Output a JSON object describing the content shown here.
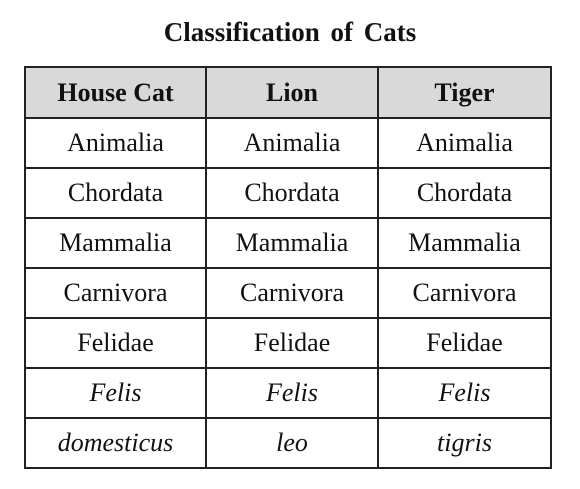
{
  "title": "Classification of Cats",
  "table": {
    "headers": [
      "House Cat",
      "Lion",
      "Tiger"
    ],
    "rows": [
      [
        "Animalia",
        "Animalia",
        "Animalia"
      ],
      [
        "Chordata",
        "Chordata",
        "Chordata"
      ],
      [
        "Mammalia",
        "Mammalia",
        "Mammalia"
      ],
      [
        "Carnivora",
        "Carnivora",
        "Carnivora"
      ],
      [
        "Felidae",
        "Felidae",
        "Felidae"
      ],
      [
        "Felis",
        "Felis",
        "Felis"
      ],
      [
        "domesticus",
        "leo",
        "tigris"
      ]
    ],
    "italic_rows": [
      5,
      6
    ],
    "header_background": "#d9d9d9",
    "border_color": "#222222"
  }
}
